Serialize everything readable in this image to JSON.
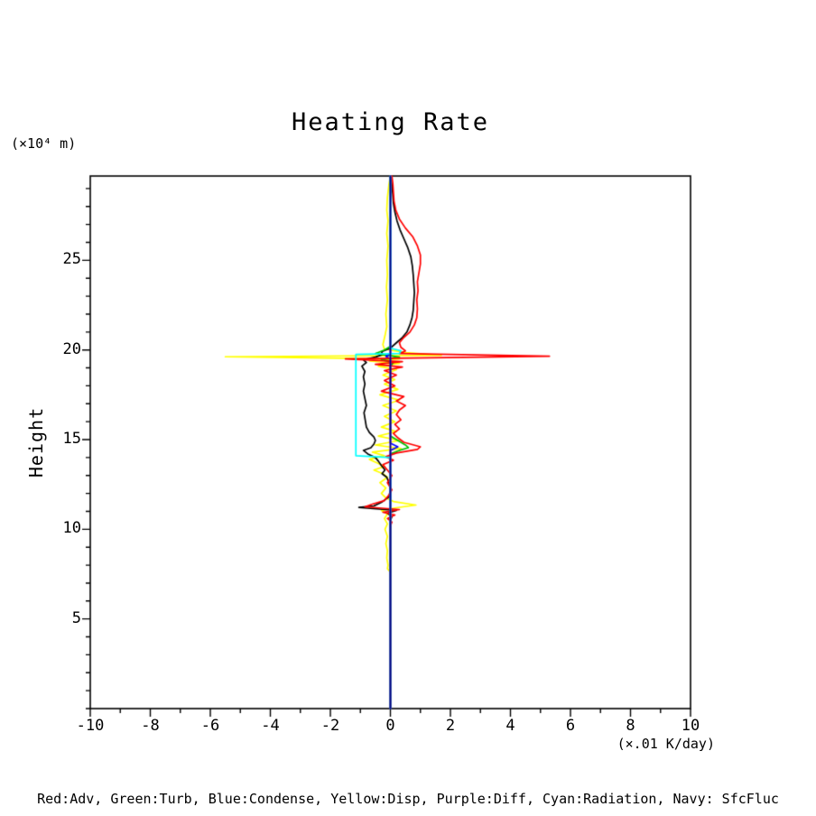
{
  "chart_data": {
    "type": "line",
    "title": "Heating Rate",
    "y_unit": "(×10⁴ m)",
    "ylabel": "Height",
    "x_unit": "(×.01 K/day)",
    "legend_text": "Red:Adv, Green:Turb, Blue:Condense, Yellow:Disp, Purple:Diff, Cyan:Radiation, Navy: SfcFluc",
    "xlim": [
      -10,
      10
    ],
    "ylim": [
      0,
      29.7
    ],
    "x_ticks": [
      -10,
      -8,
      -6,
      -4,
      -2,
      0,
      2,
      4,
      6,
      8,
      10
    ],
    "x_tick_labels": [
      "-10",
      "-8",
      "-6",
      "-4",
      "-2",
      "0",
      "2",
      "4",
      "6",
      "8",
      "10"
    ],
    "x_minor_step": 1,
    "y_ticks": [
      5,
      10,
      15,
      20,
      25
    ],
    "y_tick_labels": [
      "5",
      "10",
      "15",
      "20",
      "25"
    ],
    "y_minor_step": 1,
    "grid": false,
    "legend_position": "bottom-caption",
    "series": [
      {
        "name": "Disp",
        "color": "#ffff00",
        "points": [
          [
            0,
            29.7
          ],
          [
            -0.05,
            29.2
          ],
          [
            -0.1,
            28.5
          ],
          [
            -0.12,
            27.8
          ],
          [
            -0.08,
            27.2
          ],
          [
            -0.12,
            26.5
          ],
          [
            -0.08,
            25.8
          ],
          [
            -0.12,
            25.0
          ],
          [
            -0.1,
            24.2
          ],
          [
            -0.13,
            23.5
          ],
          [
            -0.1,
            22.8
          ],
          [
            -0.15,
            22.0
          ],
          [
            -0.12,
            21.3
          ],
          [
            -0.18,
            20.8
          ],
          [
            -0.25,
            20.3
          ],
          [
            -0.2,
            20.05
          ],
          [
            0.5,
            19.85
          ],
          [
            1.7,
            19.7
          ],
          [
            -5.5,
            19.62
          ],
          [
            0.3,
            19.5
          ],
          [
            -0.7,
            19.38
          ],
          [
            0.3,
            19.25
          ],
          [
            -0.4,
            19.1
          ],
          [
            0.2,
            18.9
          ],
          [
            -0.25,
            18.6
          ],
          [
            0.15,
            18.35
          ],
          [
            -0.2,
            18.1
          ],
          [
            0.25,
            17.8
          ],
          [
            -0.35,
            17.5
          ],
          [
            0.3,
            17.2
          ],
          [
            -0.25,
            16.9
          ],
          [
            0.2,
            16.6
          ],
          [
            -0.2,
            16.3
          ],
          [
            0.15,
            16.0
          ],
          [
            -0.3,
            15.7
          ],
          [
            0.2,
            15.45
          ],
          [
            -0.4,
            15.2
          ],
          [
            0.3,
            14.95
          ],
          [
            -0.5,
            14.7
          ],
          [
            0.35,
            14.5
          ],
          [
            -0.6,
            14.3
          ],
          [
            -0.2,
            14.1
          ],
          [
            -0.7,
            13.9
          ],
          [
            -0.45,
            13.7
          ],
          [
            -0.2,
            13.5
          ],
          [
            -0.55,
            13.3
          ],
          [
            -0.25,
            13.1
          ],
          [
            -0.1,
            12.9
          ],
          [
            -0.35,
            12.6
          ],
          [
            -0.15,
            12.3
          ],
          [
            -0.3,
            12.0
          ],
          [
            -0.15,
            11.75
          ],
          [
            0.1,
            11.55
          ],
          [
            0.85,
            11.35
          ],
          [
            0.2,
            11.2
          ],
          [
            -0.3,
            11.05
          ],
          [
            -0.1,
            10.85
          ],
          [
            -0.2,
            10.6
          ],
          [
            -0.1,
            10.3
          ],
          [
            -0.18,
            10.0
          ],
          [
            -0.1,
            9.6
          ],
          [
            -0.15,
            9.2
          ],
          [
            -0.1,
            8.8
          ],
          [
            -0.12,
            8.4
          ],
          [
            -0.08,
            8.0
          ],
          [
            -0.1,
            7.8
          ],
          [
            0,
            7.6
          ]
        ]
      },
      {
        "name": "black",
        "color": "#000000",
        "points": [
          [
            0,
            29.7
          ],
          [
            0.05,
            29.2
          ],
          [
            0.08,
            28.7
          ],
          [
            0.1,
            28.2
          ],
          [
            0.15,
            27.7
          ],
          [
            0.22,
            27.2
          ],
          [
            0.32,
            26.7
          ],
          [
            0.45,
            26.2
          ],
          [
            0.58,
            25.7
          ],
          [
            0.68,
            25.2
          ],
          [
            0.73,
            24.7
          ],
          [
            0.76,
            24.2
          ],
          [
            0.78,
            23.7
          ],
          [
            0.8,
            23.2
          ],
          [
            0.78,
            22.7
          ],
          [
            0.76,
            22.2
          ],
          [
            0.72,
            21.8
          ],
          [
            0.65,
            21.4
          ],
          [
            0.55,
            21.0
          ],
          [
            0.4,
            20.7
          ],
          [
            0.2,
            20.4
          ],
          [
            0.0,
            20.1
          ],
          [
            -0.3,
            19.9
          ],
          [
            -0.25,
            19.75
          ],
          [
            -0.5,
            19.6
          ],
          [
            -0.9,
            19.45
          ],
          [
            -0.8,
            19.3
          ],
          [
            -0.95,
            19.1
          ],
          [
            -0.85,
            18.8
          ],
          [
            -0.9,
            18.5
          ],
          [
            -0.85,
            18.1
          ],
          [
            -0.9,
            17.7
          ],
          [
            -0.85,
            17.3
          ],
          [
            -0.8,
            16.9
          ],
          [
            -0.88,
            16.5
          ],
          [
            -0.84,
            16.1
          ],
          [
            -0.8,
            15.7
          ],
          [
            -0.7,
            15.4
          ],
          [
            -0.55,
            15.15
          ],
          [
            -0.5,
            14.95
          ],
          [
            -0.55,
            14.75
          ],
          [
            -0.65,
            14.55
          ],
          [
            -0.9,
            14.4
          ],
          [
            -0.75,
            14.2
          ],
          [
            -0.5,
            14.0
          ],
          [
            -0.4,
            13.8
          ],
          [
            -0.3,
            13.55
          ],
          [
            -0.18,
            13.3
          ],
          [
            -0.28,
            13.1
          ],
          [
            -0.12,
            12.9
          ],
          [
            -0.05,
            12.6
          ],
          [
            0.0,
            12.2
          ],
          [
            -0.05,
            11.8
          ],
          [
            -0.3,
            11.5
          ],
          [
            -0.55,
            11.3
          ],
          [
            -1.05,
            11.22
          ],
          [
            0.2,
            11.05
          ],
          [
            -0.1,
            10.9
          ],
          [
            0.05,
            10.7
          ],
          [
            0.0,
            10.5
          ],
          [
            0.0,
            0.0
          ]
        ]
      },
      {
        "name": "Turb",
        "color": "#00c000",
        "points": [
          [
            0,
            29.7
          ],
          [
            0,
            20.2
          ],
          [
            -0.2,
            20.0
          ],
          [
            -0.5,
            19.8
          ],
          [
            0.3,
            19.6
          ],
          [
            -0.3,
            19.45
          ],
          [
            0.1,
            19.3
          ],
          [
            0,
            19.1
          ],
          [
            0,
            15.2
          ],
          [
            0.2,
            15.0
          ],
          [
            0.5,
            14.7
          ],
          [
            0.6,
            14.55
          ],
          [
            0.3,
            14.4
          ],
          [
            0,
            14.2
          ],
          [
            0,
            0
          ]
        ]
      },
      {
        "name": "Condense",
        "color": "#0000ff",
        "points": [
          [
            0,
            29.7
          ],
          [
            0,
            19.8
          ],
          [
            -0.15,
            19.65
          ],
          [
            0,
            19.5
          ],
          [
            0,
            14.8
          ],
          [
            0.25,
            14.6
          ],
          [
            0,
            14.4
          ],
          [
            0,
            0
          ]
        ]
      },
      {
        "name": "Adv",
        "color": "#ff0000",
        "points": [
          [
            0.05,
            29.7
          ],
          [
            0.08,
            29.3
          ],
          [
            0.1,
            28.8
          ],
          [
            0.12,
            28.3
          ],
          [
            0.18,
            27.8
          ],
          [
            0.3,
            27.3
          ],
          [
            0.5,
            26.8
          ],
          [
            0.75,
            26.3
          ],
          [
            0.9,
            25.8
          ],
          [
            1.0,
            25.3
          ],
          [
            1.0,
            24.8
          ],
          [
            0.95,
            24.3
          ],
          [
            0.9,
            23.8
          ],
          [
            0.92,
            23.3
          ],
          [
            0.88,
            22.8
          ],
          [
            0.9,
            22.3
          ],
          [
            0.88,
            21.8
          ],
          [
            0.8,
            21.4
          ],
          [
            0.65,
            21.0
          ],
          [
            0.45,
            20.7
          ],
          [
            0.3,
            20.4
          ],
          [
            0.35,
            20.15
          ],
          [
            0.5,
            19.95
          ],
          [
            0.3,
            19.8
          ],
          [
            5.3,
            19.65
          ],
          [
            -1.5,
            19.5
          ],
          [
            0.4,
            19.35
          ],
          [
            -0.5,
            19.2
          ],
          [
            0.4,
            19.05
          ],
          [
            -0.2,
            18.85
          ],
          [
            0.2,
            18.6
          ],
          [
            -0.2,
            18.3
          ],
          [
            0.15,
            18.0
          ],
          [
            -0.3,
            17.7
          ],
          [
            0.45,
            17.4
          ],
          [
            0.2,
            17.15
          ],
          [
            0.5,
            16.9
          ],
          [
            0.3,
            16.65
          ],
          [
            0.2,
            16.4
          ],
          [
            0.35,
            16.1
          ],
          [
            0.15,
            15.85
          ],
          [
            0.3,
            15.6
          ],
          [
            0.1,
            15.35
          ],
          [
            0.25,
            15.1
          ],
          [
            0.45,
            14.85
          ],
          [
            1.0,
            14.6
          ],
          [
            0.9,
            14.45
          ],
          [
            0.2,
            14.25
          ],
          [
            -0.15,
            14.05
          ],
          [
            0.1,
            13.85
          ],
          [
            -0.25,
            13.6
          ],
          [
            -0.1,
            13.3
          ],
          [
            0.05,
            13.0
          ],
          [
            -0.1,
            12.6
          ],
          [
            0.05,
            12.2
          ],
          [
            -0.05,
            11.9
          ],
          [
            -0.2,
            11.6
          ],
          [
            -0.6,
            11.4
          ],
          [
            -0.85,
            11.25
          ],
          [
            0.3,
            11.1
          ],
          [
            -0.25,
            10.95
          ],
          [
            0.15,
            10.8
          ],
          [
            -0.1,
            10.6
          ],
          [
            0.05,
            10.4
          ],
          [
            0,
            10.2
          ],
          [
            0,
            0
          ]
        ]
      },
      {
        "name": "Diff",
        "color": "#a020f0",
        "points": [
          [
            0,
            29.7
          ],
          [
            0,
            0
          ]
        ]
      },
      {
        "name": "Radiation",
        "color": "#00ffff",
        "points": [
          [
            0,
            29.7
          ],
          [
            0,
            20.1
          ],
          [
            0.35,
            19.95
          ],
          [
            0.3,
            19.8
          ],
          [
            -1.15,
            19.75
          ],
          [
            -1.15,
            14.1
          ],
          [
            0,
            14.0
          ],
          [
            0,
            0
          ]
        ]
      },
      {
        "name": "SfcFluc",
        "color": "#000080",
        "points": [
          [
            0,
            29.7
          ],
          [
            0,
            0
          ]
        ]
      }
    ]
  }
}
